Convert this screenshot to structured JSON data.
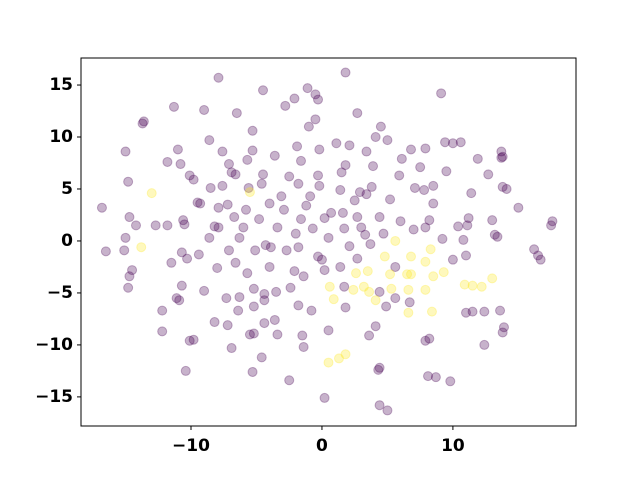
{
  "chart_data": {
    "type": "scatter",
    "xlim": [
      -18.4,
      19.4
    ],
    "ylim": [
      -17.8,
      17.6
    ],
    "xticks": [
      {
        "value": -10,
        "label": "−10"
      },
      0,
      10
    ],
    "yticks": [
      {
        "value": -15,
        "label": "−15"
      },
      {
        "value": -10,
        "label": "−10"
      },
      {
        "value": -5,
        "label": "−5"
      },
      0,
      5,
      10,
      15
    ],
    "grid": false,
    "series": [
      {
        "color": "#440154",
        "x": [
          -7.9,
          1.8,
          -1.1,
          -4.5,
          -0.5,
          9.1,
          -2.1,
          -0.3,
          -11.3,
          -9,
          -6.5,
          -2.8,
          2.7,
          -13.7,
          -13.6,
          -0.5,
          -1,
          4.5,
          5,
          -5.3,
          -8.6,
          4.1,
          9.4,
          10,
          10.6,
          1.1,
          2.1,
          -15,
          -11,
          -7.6,
          -5.3,
          -1.9,
          -0.2,
          3.4,
          6.8,
          7.9,
          13.7,
          13.8,
          -11.8,
          -10.8,
          -7.1,
          -5.7,
          -3.6,
          -1.6,
          1.8,
          3.9,
          6.1,
          11.9,
          13.7,
          7.5,
          -10.1,
          -6.9,
          -6.6,
          -4.5,
          -2.5,
          -0.3,
          1.5,
          5.9,
          9.5,
          12.7,
          -14.8,
          -9.8,
          -4.6,
          -7.6,
          -8.5,
          -5.6,
          -1.8,
          -0.2,
          3.8,
          7.1,
          7.8,
          8.5,
          13.8,
          14.1,
          1.4,
          2.9,
          3.4,
          5.2,
          11.4,
          -9.5,
          -9.3,
          -3.1,
          -0.9,
          -7.2,
          -4,
          -1.2,
          2.5,
          -16.8,
          -7.9,
          -5.8,
          -2.9,
          8.5,
          15,
          -14.7,
          -6.7,
          0.7,
          1.6,
          2.7,
          -4.8,
          -1.6,
          0.2,
          4.4,
          6,
          8.2,
          11.2,
          13,
          -14.2,
          -12.7,
          -11.8,
          -10.6,
          -10.5,
          -8.2,
          -7.9,
          -6,
          -3.4,
          -0.7,
          1.7,
          3,
          7,
          7.9,
          10.4,
          11.1,
          17.5,
          17.6,
          -2,
          3.3,
          4.7,
          13.2,
          13.4,
          -15,
          -8.6,
          -6.3,
          0.5,
          9.2,
          -4.3,
          -3.9,
          -1.8,
          2.1,
          3.7,
          10.8,
          -16.5,
          -15.1,
          -10.7,
          -9.4,
          -7.1,
          -5.1,
          -2.7,
          16.2,
          16.5,
          16.7,
          -0.3,
          0,
          2.7,
          11,
          -11.5,
          -10.3,
          -6.6,
          -4,
          -8,
          -2.1,
          0.2,
          1.4,
          5.6,
          10,
          -14.5,
          -14.7,
          -5.7,
          -1.4,
          -10.7,
          -14.8,
          -9,
          -5.2,
          -4.4,
          -3.5,
          -2.4,
          1.7,
          4.4,
          -11.1,
          -10.9,
          -7.3,
          -6.3,
          -4.4,
          -1.8,
          5.6,
          6.7,
          -12.2,
          -6.4,
          -5.2,
          -0.8,
          1.8,
          4.9,
          11,
          11.5,
          12.4,
          13.6,
          -8.2,
          -7.2,
          -4.4,
          -3.6,
          13.9,
          -12.2,
          0.5,
          4.1,
          13.8,
          -5.5,
          -5.2,
          -3.4,
          -1.5,
          3.6,
          8.2,
          -10.1,
          -9.8,
          7.9,
          -6.9,
          -1.4,
          12.4,
          -4.6,
          -10.4,
          -5.3,
          4.3,
          4.4,
          -2.5,
          8.1,
          8.7,
          9.8,
          0.2,
          4.4,
          5
        ],
        "y": [
          15.7,
          16.2,
          14.7,
          14.5,
          14.1,
          14.2,
          13.7,
          13.6,
          12.9,
          12.6,
          12.3,
          13,
          12.3,
          11.3,
          11.5,
          11.7,
          11,
          11,
          9.7,
          10.6,
          9.7,
          10,
          9.5,
          9.4,
          9.5,
          9.4,
          9.2,
          8.6,
          8.8,
          8.6,
          8.7,
          9.1,
          8.8,
          8.6,
          8.8,
          8.9,
          8.6,
          8.1,
          7.6,
          7.4,
          7.4,
          7.8,
          8.2,
          7.7,
          7.3,
          7.2,
          7.9,
          7.9,
          8,
          7.1,
          6.3,
          6.6,
          6.4,
          6.4,
          6.2,
          6.3,
          6.6,
          6.3,
          6.7,
          6.4,
          5.7,
          5.9,
          5.5,
          5.3,
          5.1,
          5.1,
          5.5,
          5.3,
          5.2,
          5.1,
          4.9,
          5.3,
          5.2,
          5,
          4.9,
          4.7,
          4.5,
          4,
          4.6,
          3.7,
          3.6,
          4.3,
          4.3,
          3.5,
          3.6,
          3.4,
          3.9,
          3.2,
          3.2,
          3,
          3,
          3.6,
          3.2,
          2.3,
          2.3,
          2.7,
          2.7,
          2.3,
          2.1,
          2.1,
          2.2,
          2.3,
          1.9,
          2,
          2.2,
          2,
          1.5,
          1.5,
          1.5,
          2,
          1.6,
          1.4,
          1.3,
          1.3,
          1.3,
          1.2,
          1.2,
          1.3,
          1.1,
          1.3,
          1.4,
          1.5,
          1.5,
          1.9,
          0.7,
          0.6,
          0.7,
          0.6,
          0.4,
          0.3,
          0.3,
          0.3,
          0.3,
          0.2,
          -0.4,
          -0.6,
          -0.6,
          -0.5,
          -0.3,
          0.1,
          -1,
          -0.9,
          -1.1,
          -1.3,
          -0.9,
          -0.9,
          -0.9,
          -0.8,
          -1.4,
          -1.8,
          -1.5,
          -1.8,
          -1.7,
          -1.4,
          -2.1,
          -1.7,
          -2.1,
          -2.5,
          -2.6,
          -2.9,
          -2.8,
          -2.5,
          -2.5,
          -1.8,
          -2.8,
          -3.4,
          -3.1,
          -3.4,
          -4.3,
          -4.5,
          -4.8,
          -4.6,
          -5.1,
          -4.9,
          -4.5,
          -4.4,
          -4.9,
          -5.5,
          -5.7,
          -5.5,
          -5.4,
          -5.7,
          -6.2,
          -5.5,
          -5.9,
          -6.7,
          -6.7,
          -6.3,
          -6.7,
          -6.4,
          -6.3,
          -6.9,
          -6.8,
          -6.8,
          -6.7,
          -7.8,
          -8.1,
          -7.9,
          -7.6,
          -8.3,
          -8.7,
          -8.6,
          -8.2,
          -8.8,
          -9,
          -8.9,
          -9,
          -9.1,
          -9.1,
          -9.4,
          -9.6,
          -9.5,
          -9.6,
          -10.3,
          -10.2,
          -10,
          -11.2,
          -12.5,
          -12.6,
          -12.4,
          -12.2,
          -13.4,
          -13,
          -13.1,
          -13.5,
          -15.1,
          -15.8,
          -16.3
        ]
      },
      {
        "color": "#fde725",
        "x": [
          -13,
          -5.5,
          -13.8,
          5.6,
          4.8,
          6.8,
          8.3,
          7.9,
          2.6,
          3.5,
          5.2,
          6.5,
          6.8,
          8.5,
          9.3,
          0.6,
          2.4,
          3.2,
          3.6,
          5.3,
          6.6,
          7.9,
          10.9,
          11.5,
          12.2,
          13,
          0.9,
          4.1,
          6.6,
          8.4,
          1.3,
          1.8,
          0.5
        ],
        "y": [
          4.6,
          4.7,
          -0.6,
          0,
          -1.5,
          -1.5,
          -0.8,
          -2,
          -3.1,
          -2.9,
          -3.2,
          -3.2,
          -3.2,
          -3.4,
          -3,
          -4.4,
          -4.7,
          -4.4,
          -4.9,
          -4.6,
          -4.7,
          -4.7,
          -4.2,
          -4.3,
          -4.4,
          -3.6,
          -5.6,
          -5.7,
          -6.9,
          -6.8,
          -11.3,
          -10.9,
          -11.7
        ]
      }
    ]
  }
}
